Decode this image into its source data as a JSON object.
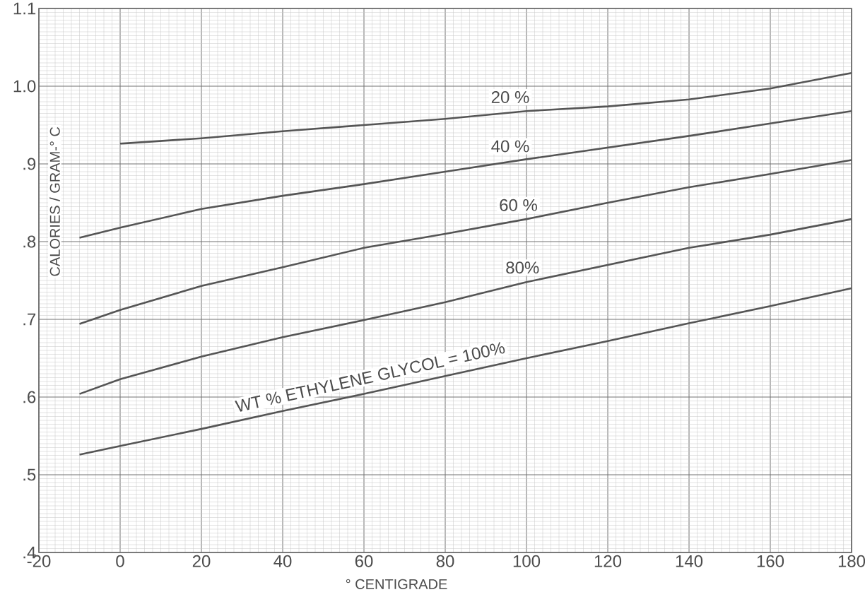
{
  "chart_data": {
    "type": "line",
    "xlabel": "° CENTIGRADE",
    "ylabel": "CALORIES / GRAM-° C",
    "xlim": [
      -20,
      180
    ],
    "ylim": [
      0.4,
      1.1
    ],
    "xticks": [
      -20,
      0,
      20,
      40,
      60,
      80,
      100,
      120,
      140,
      160,
      180
    ],
    "yticks": [
      {
        "value": 0.4,
        "label": ".4"
      },
      {
        "value": 0.5,
        "label": ".5"
      },
      {
        "value": 0.6,
        "label": ".6"
      },
      {
        "value": 0.7,
        "label": ".7"
      },
      {
        "value": 0.8,
        "label": ".8"
      },
      {
        "value": 0.9,
        "label": ".9"
      },
      {
        "value": 1.0,
        "label": "1.0"
      },
      1.1
    ],
    "grid": true,
    "series": [
      {
        "name": "20 %",
        "color": "#555555",
        "x": [
          0,
          20,
          40,
          60,
          80,
          100,
          120,
          140,
          160,
          180
        ],
        "values": [
          0.926,
          0.933,
          0.942,
          0.95,
          0.958,
          0.968,
          0.974,
          0.983,
          0.997,
          1.017
        ]
      },
      {
        "name": "40 %",
        "color": "#555555",
        "x": [
          -10,
          0,
          20,
          40,
          60,
          80,
          100,
          120,
          140,
          160,
          180
        ],
        "values": [
          0.805,
          0.818,
          0.842,
          0.859,
          0.874,
          0.89,
          0.906,
          0.921,
          0.936,
          0.952,
          0.968
        ]
      },
      {
        "name": "60 %",
        "color": "#555555",
        "x": [
          -10,
          0,
          20,
          40,
          60,
          80,
          100,
          120,
          140,
          160,
          180
        ],
        "values": [
          0.694,
          0.712,
          0.743,
          0.767,
          0.792,
          0.81,
          0.829,
          0.85,
          0.87,
          0.887,
          0.905
        ]
      },
      {
        "name": "80%",
        "color": "#555555",
        "x": [
          -10,
          0,
          20,
          40,
          60,
          80,
          100,
          120,
          140,
          160,
          180
        ],
        "values": [
          0.604,
          0.623,
          0.652,
          0.677,
          0.699,
          0.722,
          0.748,
          0.77,
          0.792,
          0.809,
          0.829
        ]
      },
      {
        "name": "WT % ETHYLENE GLYCOL = 100%",
        "color": "#555555",
        "x": [
          -10,
          0,
          20,
          40,
          60,
          80,
          100,
          120,
          140,
          160,
          180
        ],
        "values": [
          0.526,
          0.537,
          0.559,
          0.582,
          0.604,
          0.627,
          0.65,
          0.672,
          0.695,
          0.717,
          0.74
        ]
      }
    ]
  }
}
